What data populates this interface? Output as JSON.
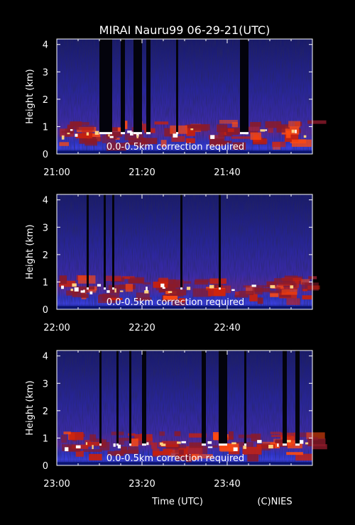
{
  "title": "MIRAI Nauru99 06-29-21(UTC)",
  "xlabel": "Time (UTC)",
  "credit": "(C)NIES",
  "colors": {
    "background": "#000000",
    "text": "#ffffff",
    "scale": [
      "#050510",
      "#1a1470",
      "#2a24b0",
      "#3a3ad8",
      "#5a2a9a",
      "#9a1a3a",
      "#d02010",
      "#ff5010",
      "#ffb060",
      "#ffffff"
    ]
  },
  "chart_data": [
    {
      "type": "heatmap",
      "ylabel": "Height (km)",
      "ylim": [
        0,
        4.2
      ],
      "yticks": [
        "0",
        "1",
        "2",
        "3",
        "4"
      ],
      "xticks": [
        "21:00",
        "21:20",
        "21:40"
      ],
      "annotation": "0.0-0.5km correction required",
      "time_range_min": [
        0,
        60
      ],
      "cloud_layer_km": [
        0.5,
        0.9
      ],
      "signal_blocked_intervals_min": [
        [
          10,
          13
        ],
        [
          15,
          16
        ],
        [
          18,
          20
        ],
        [
          21,
          22
        ],
        [
          28,
          28.5
        ],
        [
          43,
          45
        ]
      ]
    },
    {
      "type": "heatmap",
      "ylabel": "Height (km)",
      "ylim": [
        0,
        4.2
      ],
      "yticks": [
        "0",
        "1",
        "2",
        "3",
        "4"
      ],
      "xticks": [
        "22:00",
        "22:20",
        "22:40"
      ],
      "annotation": "0.0-0.5km correction required",
      "time_range_min": [
        0,
        60
      ],
      "cloud_layer_km": [
        0.5,
        0.9
      ],
      "signal_blocked_intervals_min": [
        [
          7,
          7.5
        ],
        [
          11,
          11.5
        ],
        [
          13,
          13.5
        ],
        [
          29,
          29.5
        ],
        [
          38,
          38.5
        ]
      ]
    },
    {
      "type": "heatmap",
      "ylabel": "Height (km)",
      "ylim": [
        0,
        4.2
      ],
      "yticks": [
        "0",
        "1",
        "2",
        "3",
        "4"
      ],
      "xticks": [
        "23:00",
        "23:20",
        "23:40"
      ],
      "annotation": "0.0-0.5km correction required",
      "time_range_min": [
        0,
        60
      ],
      "cloud_layer_km": [
        0.5,
        0.9
      ],
      "signal_blocked_intervals_min": [
        [
          10,
          10.5
        ],
        [
          14,
          14.5
        ],
        [
          17,
          17.5
        ],
        [
          20,
          21
        ],
        [
          34,
          35
        ],
        [
          38,
          40
        ],
        [
          44,
          44.5
        ],
        [
          53,
          54
        ],
        [
          56,
          57
        ]
      ]
    }
  ]
}
